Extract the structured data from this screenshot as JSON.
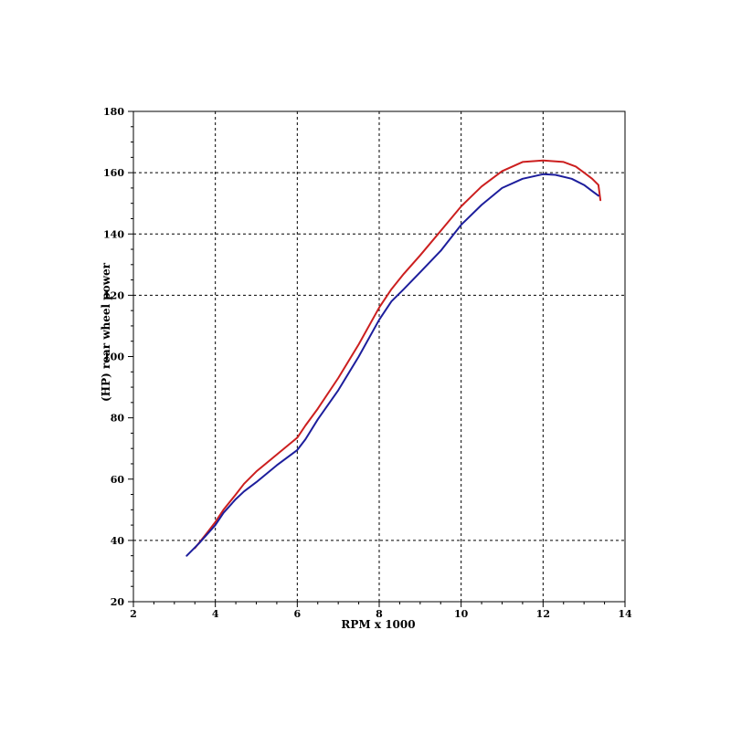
{
  "chart_data": {
    "type": "line",
    "title": "",
    "xlabel": "RPM x 1000",
    "ylabel": "(HP) rear wheel power",
    "xlim": [
      2,
      14
    ],
    "ylim": [
      20,
      180
    ],
    "grid": true,
    "x_ticks": [
      2,
      4,
      6,
      8,
      10,
      12,
      14
    ],
    "x_tick_labels": [
      "2",
      "4",
      "6",
      "8",
      "10",
      "12",
      "14"
    ],
    "y_ticks": [
      20,
      40,
      60,
      80,
      100,
      120,
      140,
      160,
      180
    ],
    "y_tick_labels": [
      "20",
      "40",
      "60",
      "80",
      "100",
      "120",
      "140",
      "160",
      "180"
    ],
    "series": [
      {
        "color": "#cc1f1f",
        "points": [
          [
            3.5,
            37.5
          ],
          [
            3.8,
            42.5
          ],
          [
            4.0,
            46.0
          ],
          [
            4.2,
            50.0
          ],
          [
            4.5,
            55.0
          ],
          [
            4.7,
            58.5
          ],
          [
            5.0,
            62.5
          ],
          [
            5.5,
            68.0
          ],
          [
            6.0,
            73.5
          ],
          [
            6.2,
            77.5
          ],
          [
            6.5,
            83.0
          ],
          [
            7.0,
            93.0
          ],
          [
            7.5,
            104.0
          ],
          [
            8.0,
            116.0
          ],
          [
            8.3,
            122.0
          ],
          [
            8.6,
            127.0
          ],
          [
            9.0,
            133.0
          ],
          [
            9.5,
            141.0
          ],
          [
            10.0,
            149.0
          ],
          [
            10.5,
            155.5
          ],
          [
            11.0,
            160.5
          ],
          [
            11.5,
            163.5
          ],
          [
            12.0,
            164.0
          ],
          [
            12.5,
            163.5
          ],
          [
            12.8,
            162.0
          ],
          [
            13.0,
            160.0
          ],
          [
            13.2,
            158.0
          ],
          [
            13.35,
            156.0
          ],
          [
            13.4,
            151.0
          ]
        ]
      },
      {
        "color": "#1d1e9c",
        "points": [
          [
            3.3,
            35.0
          ],
          [
            3.6,
            39.0
          ],
          [
            4.0,
            45.0
          ],
          [
            4.2,
            49.0
          ],
          [
            4.5,
            53.5
          ],
          [
            4.7,
            56.0
          ],
          [
            5.0,
            59.0
          ],
          [
            5.5,
            64.5
          ],
          [
            6.0,
            69.5
          ],
          [
            6.2,
            73.0
          ],
          [
            6.5,
            79.5
          ],
          [
            7.0,
            89.0
          ],
          [
            7.5,
            100.0
          ],
          [
            8.0,
            112.0
          ],
          [
            8.3,
            118.0
          ],
          [
            8.6,
            122.0
          ],
          [
            9.0,
            127.5
          ],
          [
            9.5,
            134.5
          ],
          [
            10.0,
            143.0
          ],
          [
            10.5,
            149.5
          ],
          [
            11.0,
            155.0
          ],
          [
            11.5,
            158.0
          ],
          [
            12.0,
            159.5
          ],
          [
            12.3,
            159.3
          ],
          [
            12.7,
            158.0
          ],
          [
            13.0,
            156.0
          ],
          [
            13.2,
            154.0
          ],
          [
            13.35,
            152.5
          ]
        ]
      }
    ]
  }
}
